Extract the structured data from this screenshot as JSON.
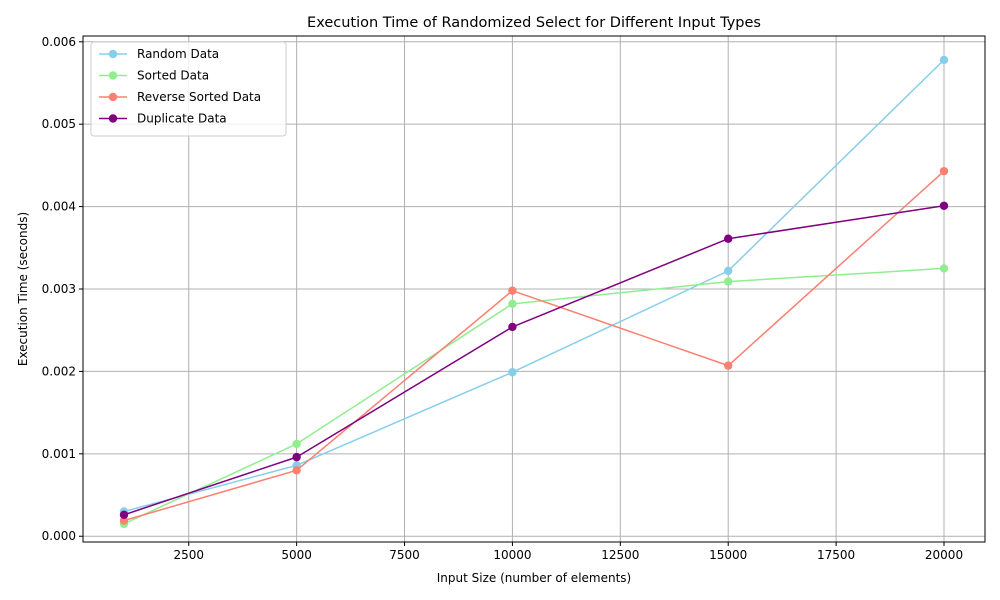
{
  "chart_data": {
    "type": "line",
    "title": "Execution Time of Randomized Select for Different Input Types",
    "xlabel": "Input Size (number of elements)",
    "ylabel": "Execution Time (seconds)",
    "x": [
      1000,
      5000,
      10000,
      15000,
      20000
    ],
    "xlim": [
      50,
      20950
    ],
    "ylim": [
      -7e-05,
      0.00607
    ],
    "xticks": [
      2500,
      5000,
      7500,
      10000,
      12500,
      15000,
      17500,
      20000
    ],
    "xtick_labels": [
      "2500",
      "5000",
      "7500",
      "10000",
      "12500",
      "15000",
      "17500",
      "20000"
    ],
    "yticks": [
      0,
      0.001,
      0.002,
      0.003,
      0.004,
      0.005,
      0.006
    ],
    "ytick_labels": [
      "0.000",
      "0.001",
      "0.002",
      "0.003",
      "0.004",
      "0.005",
      "0.006"
    ],
    "grid": true,
    "legend_position": "top-left",
    "series": [
      {
        "name": "Random Data",
        "color": "#87ceeb",
        "values": [
          0.0003,
          0.00086,
          0.00199,
          0.00322,
          0.00578
        ]
      },
      {
        "name": "Sorted Data",
        "color": "#90ee90",
        "values": [
          0.00015,
          0.00112,
          0.00282,
          0.00309,
          0.00325
        ]
      },
      {
        "name": "Reverse Sorted Data",
        "color": "#fa8072",
        "values": [
          0.00019,
          0.0008,
          0.00298,
          0.00207,
          0.00443
        ]
      },
      {
        "name": "Duplicate Data",
        "color": "#800080",
        "values": [
          0.00026,
          0.00096,
          0.00254,
          0.00361,
          0.00401
        ]
      }
    ]
  }
}
